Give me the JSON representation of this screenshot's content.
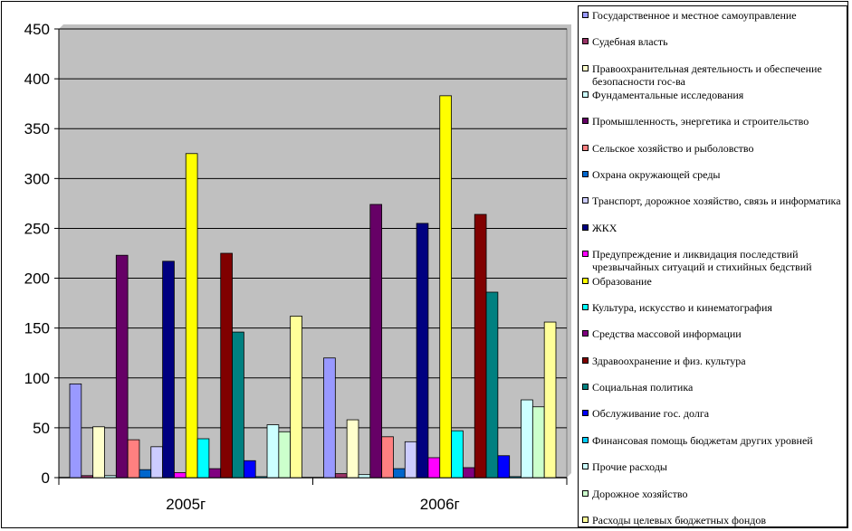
{
  "chart_data": {
    "type": "bar",
    "categories": [
      "2005г",
      "2006г"
    ],
    "ylim": [
      0,
      450
    ],
    "yticks": [
      "0",
      "50",
      "100",
      "150",
      "200",
      "250",
      "300",
      "350",
      "400",
      "450"
    ],
    "grid": true,
    "legend_position": "right",
    "series": [
      {
        "name": "Государственное и местное самоуправление",
        "color": "#9999FF",
        "values": [
          94,
          120
        ]
      },
      {
        "name": "Судебная власть",
        "color": "#993366",
        "values": [
          2,
          4
        ]
      },
      {
        "name": "Правоохранительная деятельность и обеспечение безопасности гос-ва",
        "color": "#FFFFCC",
        "values": [
          51,
          58
        ]
      },
      {
        "name": "Фундаментальные исследования",
        "color": "#CCFFFF",
        "values": [
          2,
          3
        ]
      },
      {
        "name": "Промышленность, энергетика и строительство",
        "color": "#660066",
        "values": [
          223,
          274
        ]
      },
      {
        "name": "Сельское хозяйство и рыболовство",
        "color": "#FF8080",
        "values": [
          38,
          41
        ]
      },
      {
        "name": "Охрана окружающей среды",
        "color": "#0066CC",
        "values": [
          8,
          9
        ]
      },
      {
        "name": "Транспорт, дорожное хозяйство,  связь и информатика",
        "color": "#CCCCFF",
        "values": [
          31,
          36
        ]
      },
      {
        "name": "ЖКХ",
        "color": "#000080",
        "values": [
          217,
          255
        ]
      },
      {
        "name": "Предупреждение и ликвидация последствий чрезвычайных ситуаций и стихийных бедствий",
        "color": "#FF00FF",
        "values": [
          5,
          20
        ]
      },
      {
        "name": "Образование",
        "color": "#FFFF00",
        "values": [
          325,
          383
        ]
      },
      {
        "name": "Культура, искусство и кинематография",
        "color": "#00FFFF",
        "values": [
          39,
          47
        ]
      },
      {
        "name": "Средства массовой информации",
        "color": "#800080",
        "values": [
          9,
          10
        ]
      },
      {
        "name": "Здравоохранение и физ. культура",
        "color": "#800000",
        "values": [
          225,
          264
        ]
      },
      {
        "name": "Социальная политика",
        "color": "#008080",
        "values": [
          146,
          186
        ]
      },
      {
        "name": "Обслуживание гос. долга",
        "color": "#0000FF",
        "values": [
          17,
          22
        ]
      },
      {
        "name": "Финансовая помощь бюджетам других уровней",
        "color": "#00CCFF",
        "values": [
          1,
          1
        ]
      },
      {
        "name": "Прочие расходы",
        "color": "#CCFFFF",
        "values": [
          53,
          78
        ]
      },
      {
        "name": "Дорожное хозяйство",
        "color": "#CCFFCC",
        "values": [
          46,
          71
        ]
      },
      {
        "name": "Расходы целевых бюджетных фондов",
        "color": "#FFFF99",
        "values": [
          162,
          156
        ]
      }
    ]
  }
}
